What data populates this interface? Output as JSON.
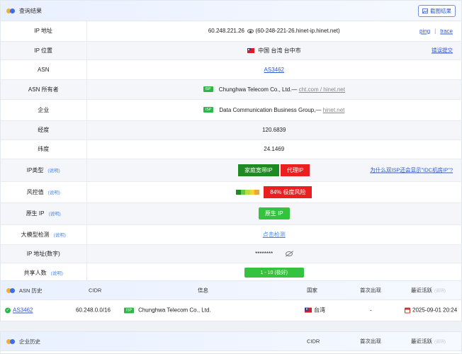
{
  "header": {
    "title": "查询结果",
    "screenshot_label": "截图结果"
  },
  "rows": {
    "ip": {
      "label": "IP 地址",
      "value": "60.248.221.26",
      "hostname": "(60-248-221-26.hinet-ip.hinet.net)",
      "ping": "ping",
      "sep": "|",
      "trace": "trace"
    },
    "location": {
      "label": "IP 位置",
      "value": "中国 台湾 台中市",
      "report": "错误提交"
    },
    "asn": {
      "label": "ASN",
      "value": "AS3462"
    },
    "asn_owner": {
      "label": "ASN 所有者",
      "tag": "ISP",
      "value": "Chunghwa Telecom Co., Ltd.—",
      "domains": "cht.com / hinet.net"
    },
    "org": {
      "label": "企业",
      "tag": "ISP",
      "value": "Data Communication Business Group,—",
      "domain": "hinet.net"
    },
    "lon": {
      "label": "经度",
      "value": "120.6839"
    },
    "lat": {
      "label": "纬度",
      "value": "24.1469"
    },
    "ip_type": {
      "label": "IP类型",
      "help": "(说明)",
      "badge1": "家庭宽带IP",
      "badge2": "代理IP",
      "question": "为什么双ISP还会显示\"IDC机房IP\"?"
    },
    "risk": {
      "label": "风控值",
      "help": "(说明)",
      "value": "84%  极度风险",
      "risk_percent": 84
    },
    "native": {
      "label": "原生 IP",
      "help": "(说明)",
      "value": "原生 IP"
    },
    "llm": {
      "label": "大模型检测",
      "help": "(说明)",
      "value": "点击检测"
    },
    "ip_num": {
      "label": "IP 地址(数字)",
      "value": "********"
    },
    "share": {
      "label": "共享人数",
      "help": "(说明)",
      "value": "1 - 10 (极好)"
    }
  },
  "asn_history": {
    "title": "ASN 历史",
    "columns": {
      "cidr": "CIDR",
      "info": "信息",
      "country": "国家",
      "first": "首次出现",
      "last": "最近活跃",
      "last_hint": "(说明)"
    },
    "rows": [
      {
        "asn": "AS3462",
        "cidr": "60.248.0.0/16",
        "tag": "ISP",
        "info": "Chunghwa Telecom Co., Ltd.",
        "country": "台湾",
        "first": "-",
        "last": "2025-09-01 20:24"
      }
    ]
  },
  "org_history": {
    "title": "企业历史",
    "columns": {
      "cidr": "CIDR",
      "first": "首次出现",
      "last": "最近活跃",
      "last_hint": "(说明)"
    }
  },
  "colors": {
    "accent": "#2e5ad0",
    "green": "#1f8a24",
    "red": "#ea2020",
    "light_green": "#35c23e"
  }
}
